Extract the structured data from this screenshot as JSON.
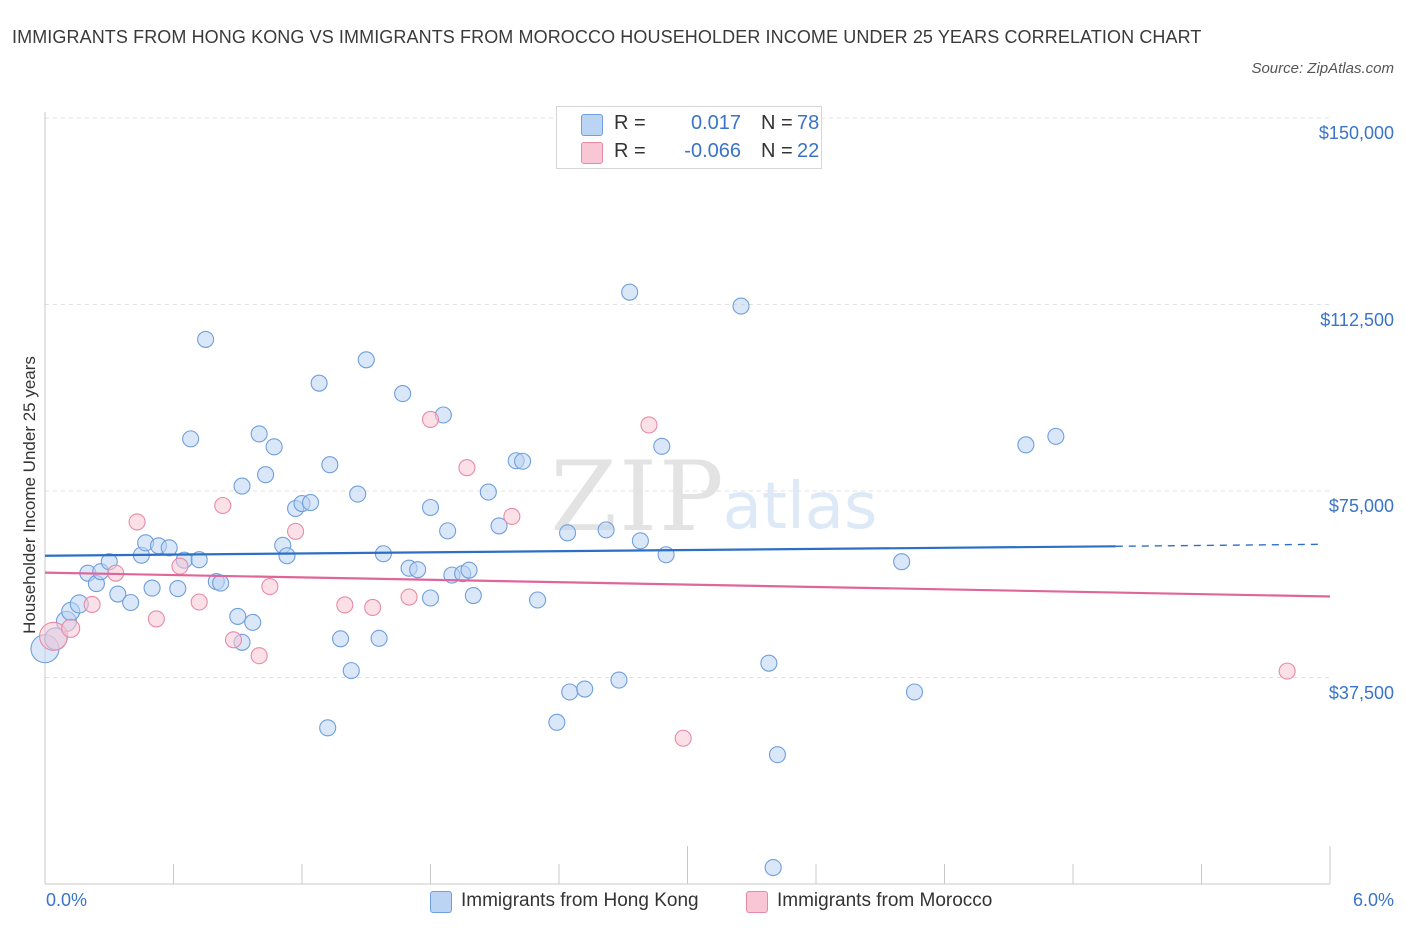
{
  "title": "IMMIGRANTS FROM HONG KONG VS IMMIGRANTS FROM MOROCCO HOUSEHOLDER INCOME UNDER 25 YEARS CORRELATION CHART",
  "source": "Source: ZipAtlas.com",
  "watermark": {
    "zip": "ZIP",
    "atlas": "atlas"
  },
  "colors": {
    "blue_fill": "#bcd4f4",
    "blue_stroke": "#6f9fdc",
    "blue_line": "#2c6fc4",
    "pink_fill": "#f8c6d4",
    "pink_stroke": "#e88aa6",
    "pink_line": "#e0669a",
    "grid": "#e0e0e0",
    "axis_text": "#3a74c9"
  },
  "legend_top": [
    {
      "series": "hong_kong",
      "r_label": "R =",
      "r_value": "0.017",
      "n_label": "N =",
      "n_value": "78"
    },
    {
      "series": "morocco",
      "r_label": "R =",
      "r_value": "-0.066",
      "n_label": "N =",
      "n_value": "22"
    }
  ],
  "chart_data": {
    "type": "scatter",
    "title": "IMMIGRANTS FROM HONG KONG VS IMMIGRANTS FROM MOROCCO HOUSEHOLDER INCOME UNDER 25 YEARS CORRELATION CHART",
    "xlabel": "",
    "ylabel": "Householder Income Under 25 years",
    "xlim": [
      0,
      6
    ],
    "ylim": [
      0,
      150000
    ],
    "x_tick_labels": [
      "0.0%",
      "6.0%"
    ],
    "y_ticks": [
      37500,
      75000,
      112500,
      150000
    ],
    "y_tick_labels": [
      "$37,500",
      "$75,000",
      "$112,500",
      "$150,000"
    ],
    "grid": "horizontal dashed",
    "legend": "bottom-center",
    "series": [
      {
        "key": "hong_kong",
        "name": "Immigrants from Hong Kong",
        "R": 0.017,
        "N": 78,
        "trend": {
          "x0": 0,
          "y0": 65200,
          "x1": 5.0,
          "y1": 67100,
          "dashed_to_x": 5.97,
          "dashed_to_y": 67500
        },
        "points": [
          [
            0.0,
            46500,
            14
          ],
          [
            0.05,
            48500,
            11
          ],
          [
            0.1,
            52000,
            10
          ],
          [
            0.12,
            54000,
            9
          ],
          [
            0.16,
            55500,
            9
          ],
          [
            0.2,
            61700,
            8
          ],
          [
            0.24,
            59600,
            8
          ],
          [
            0.26,
            62000,
            8
          ],
          [
            0.3,
            64000,
            8
          ],
          [
            0.34,
            57500,
            8
          ],
          [
            0.4,
            55800,
            8
          ],
          [
            0.45,
            65300,
            8
          ],
          [
            0.47,
            67800,
            8
          ],
          [
            0.5,
            58700,
            8
          ],
          [
            0.53,
            67200,
            8
          ],
          [
            0.58,
            66800,
            8
          ],
          [
            0.62,
            58600,
            8
          ],
          [
            0.65,
            64300,
            8
          ],
          [
            0.68,
            88700,
            8
          ],
          [
            0.72,
            64400,
            8
          ],
          [
            0.75,
            108700,
            8
          ],
          [
            0.8,
            60000,
            8
          ],
          [
            0.82,
            59700,
            8
          ],
          [
            0.9,
            53000,
            8
          ],
          [
            0.92,
            79200,
            8
          ],
          [
            0.92,
            47800,
            8
          ],
          [
            0.97,
            51800,
            8
          ],
          [
            1.0,
            89700,
            8
          ],
          [
            1.03,
            81500,
            8
          ],
          [
            1.07,
            87100,
            8
          ],
          [
            1.11,
            67300,
            8
          ],
          [
            1.13,
            65200,
            8
          ],
          [
            1.17,
            74700,
            8
          ],
          [
            1.2,
            75700,
            8
          ],
          [
            1.24,
            75900,
            8
          ],
          [
            1.28,
            99900,
            8
          ],
          [
            1.33,
            83500,
            8
          ],
          [
            1.38,
            48500,
            8
          ],
          [
            1.43,
            42100,
            8
          ],
          [
            1.46,
            77600,
            8
          ],
          [
            1.5,
            104600,
            8
          ],
          [
            1.56,
            48600,
            8
          ],
          [
            1.58,
            65600,
            8
          ],
          [
            1.67,
            97800,
            8
          ],
          [
            1.7,
            62700,
            8
          ],
          [
            1.74,
            62400,
            8
          ],
          [
            1.8,
            74900,
            8
          ],
          [
            1.8,
            56700,
            8
          ],
          [
            1.86,
            93500,
            8
          ],
          [
            1.88,
            70200,
            8
          ],
          [
            1.9,
            61300,
            8
          ],
          [
            1.95,
            61600,
            8
          ],
          [
            1.98,
            62300,
            8
          ],
          [
            2.0,
            57200,
            8
          ],
          [
            2.07,
            78000,
            8
          ],
          [
            2.12,
            71200,
            8
          ],
          [
            2.2,
            84300,
            8
          ],
          [
            2.23,
            84200,
            8
          ],
          [
            2.3,
            56300,
            8
          ],
          [
            2.39,
            31700,
            8
          ],
          [
            2.44,
            69800,
            8
          ],
          [
            2.45,
            37800,
            8
          ],
          [
            2.52,
            38400,
            8
          ],
          [
            2.62,
            70400,
            8
          ],
          [
            2.68,
            40200,
            8
          ],
          [
            2.73,
            118200,
            8
          ],
          [
            2.78,
            68200,
            8
          ],
          [
            2.88,
            87200,
            8
          ],
          [
            2.9,
            65400,
            8
          ],
          [
            3.25,
            115400,
            8
          ],
          [
            3.38,
            43600,
            8
          ],
          [
            3.42,
            25200,
            8
          ],
          [
            3.4,
            2500,
            8
          ],
          [
            4.0,
            64000,
            8
          ],
          [
            4.06,
            37800,
            8
          ],
          [
            4.58,
            87500,
            8
          ],
          [
            4.72,
            89200,
            8
          ],
          [
            1.32,
            30600,
            8
          ]
        ]
      },
      {
        "key": "morocco",
        "name": "Immigrants from Morocco",
        "R": -0.066,
        "N": 22,
        "trend": {
          "x0": 0,
          "y0": 61800,
          "x1": 6.0,
          "y1": 57000
        },
        "points": [
          [
            0.04,
            49000,
            14
          ],
          [
            0.12,
            50600,
            9
          ],
          [
            0.22,
            55400,
            8
          ],
          [
            0.33,
            61700,
            8
          ],
          [
            0.43,
            72000,
            8
          ],
          [
            0.52,
            52500,
            8
          ],
          [
            0.63,
            63100,
            8
          ],
          [
            0.72,
            55900,
            8
          ],
          [
            0.83,
            75300,
            8
          ],
          [
            0.88,
            48300,
            8
          ],
          [
            1.0,
            45100,
            8
          ],
          [
            1.05,
            59000,
            8
          ],
          [
            1.17,
            70100,
            8
          ],
          [
            1.4,
            55300,
            8
          ],
          [
            1.53,
            54800,
            8
          ],
          [
            1.7,
            56900,
            8
          ],
          [
            1.8,
            92600,
            8
          ],
          [
            1.97,
            82900,
            8
          ],
          [
            2.18,
            73100,
            8
          ],
          [
            2.82,
            91500,
            8
          ],
          [
            2.98,
            28500,
            8
          ],
          [
            5.8,
            42000,
            8
          ]
        ]
      }
    ]
  }
}
